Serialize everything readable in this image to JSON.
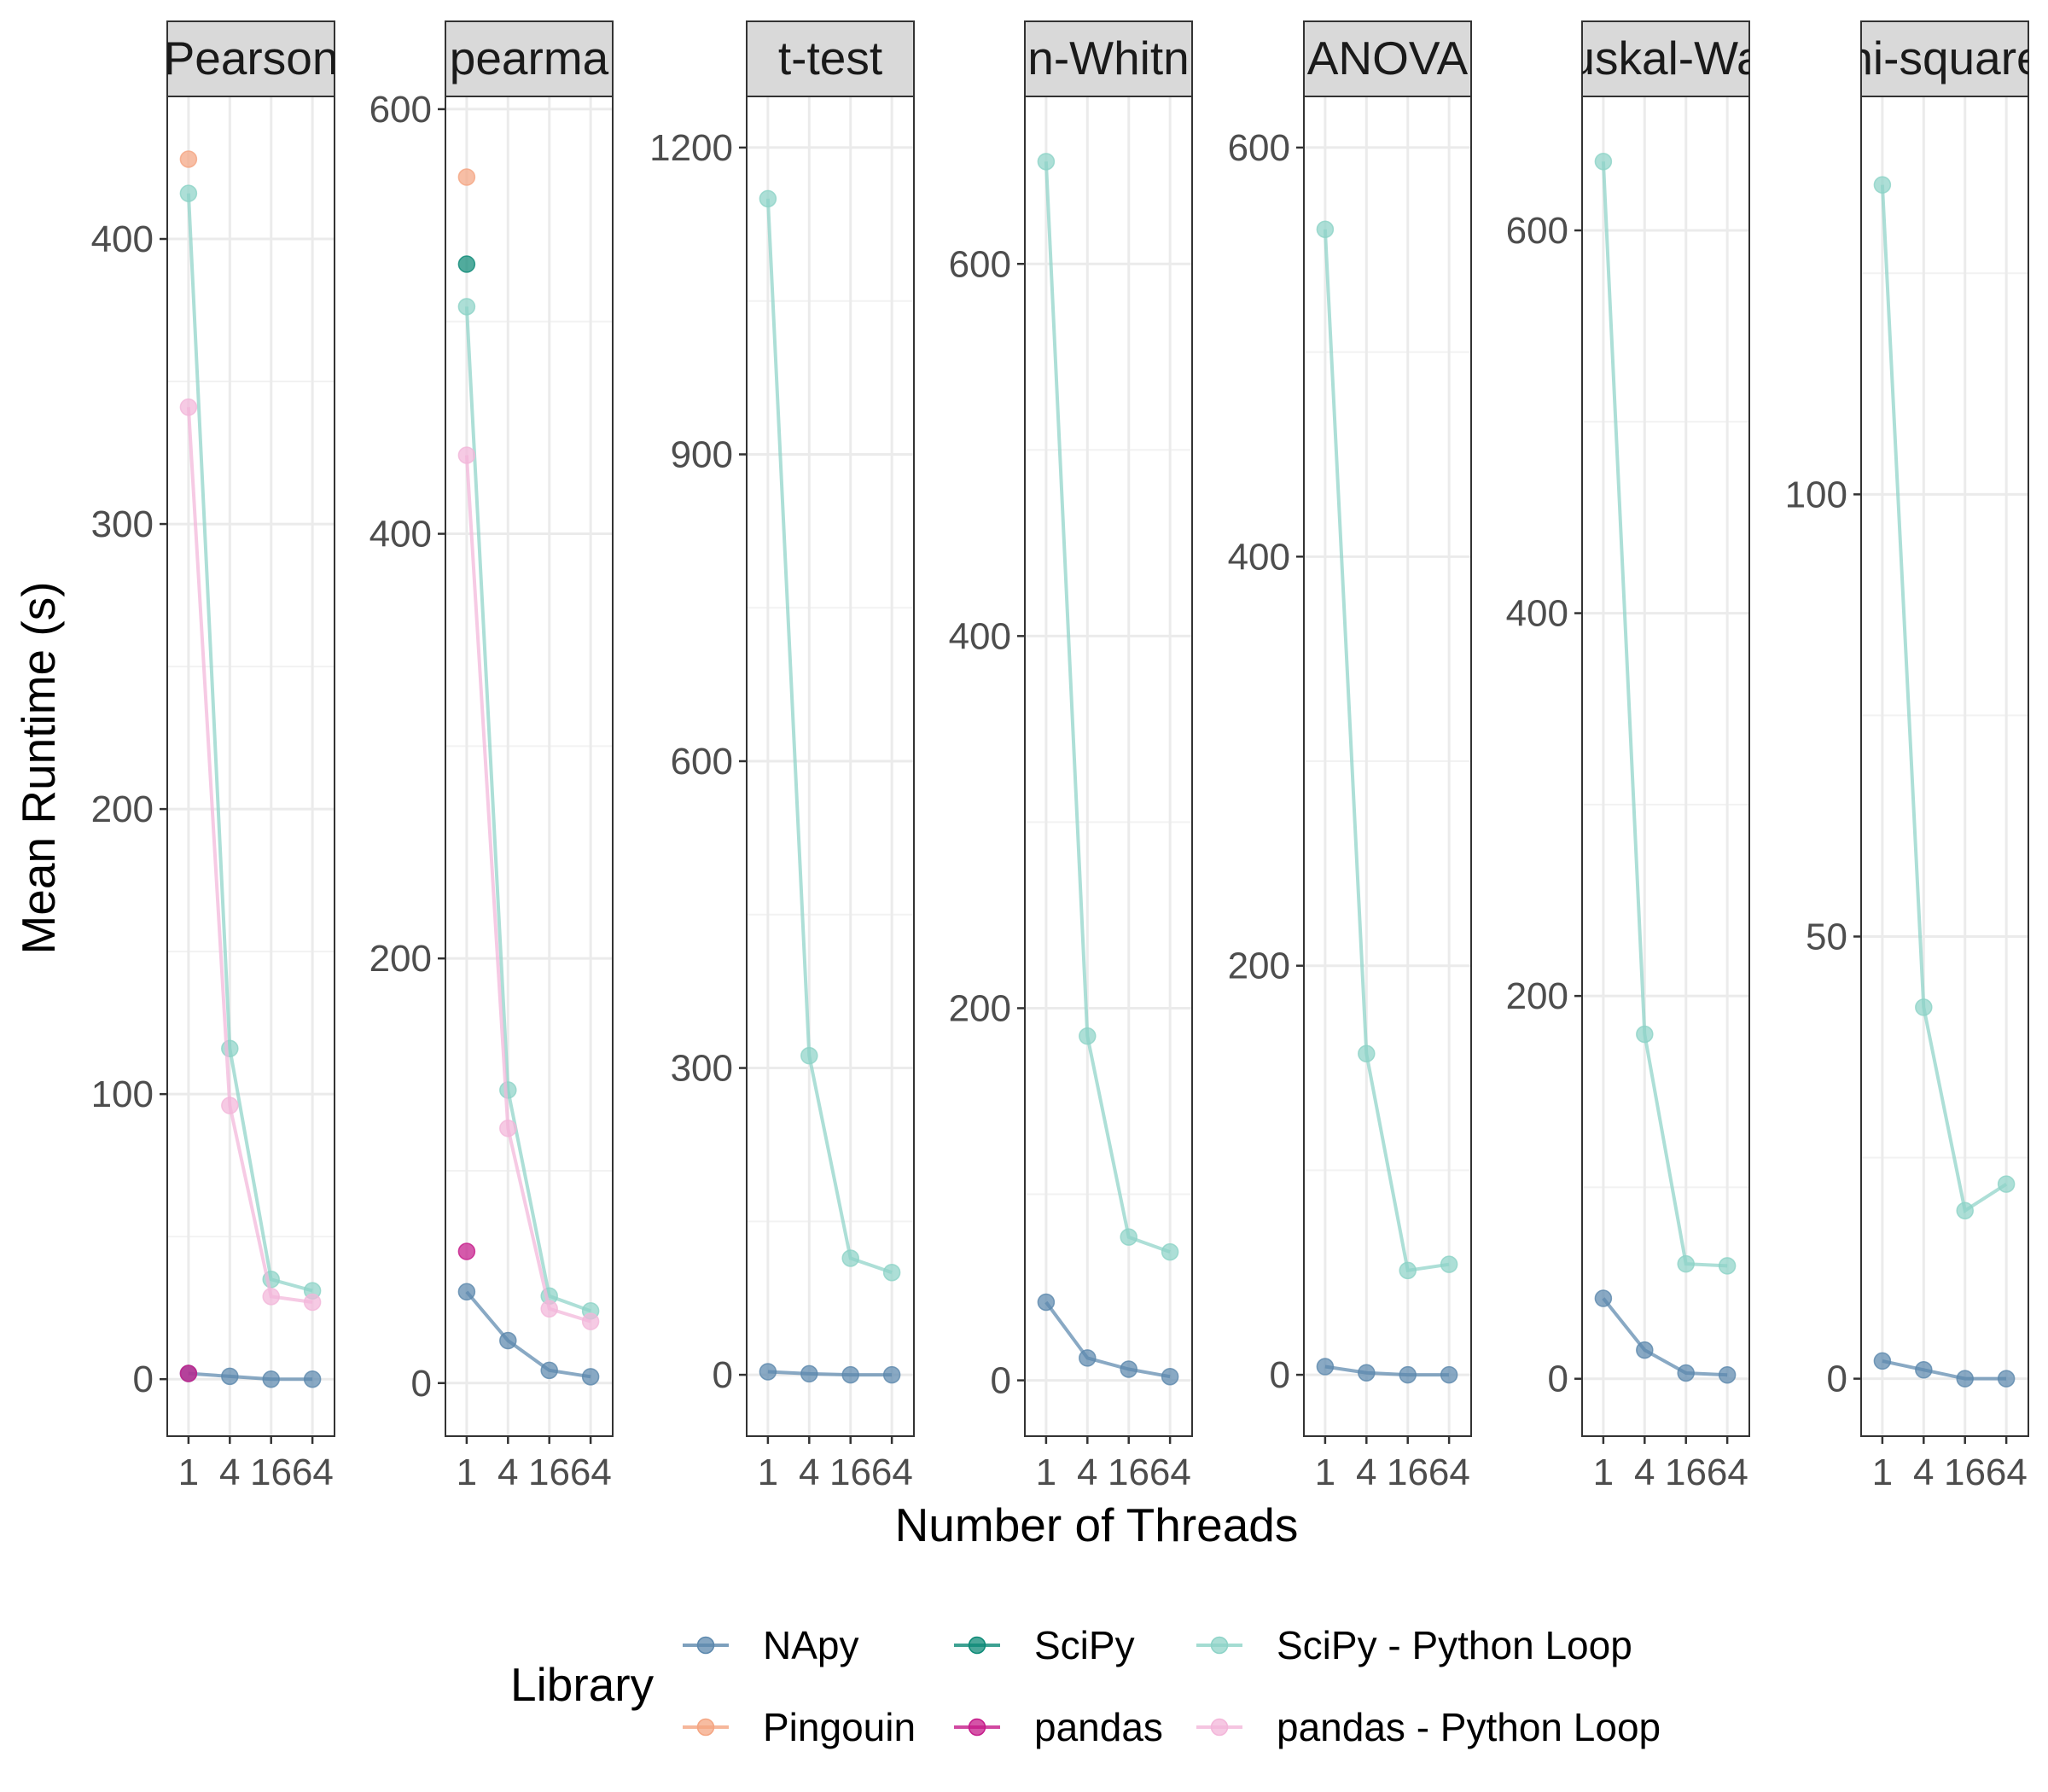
{
  "figure": {
    "xlabel": "Number of Threads",
    "ylabel": "Mean Runtime (s)"
  },
  "legend": {
    "title": "Library",
    "position": "bottom",
    "items": [
      {
        "label": "NApy",
        "color": "#5C88AD"
      },
      {
        "label": "SciPy",
        "color": "#0E8A77"
      },
      {
        "label": "SciPy - Python Loop",
        "color": "#8DD3C7"
      },
      {
        "label": "Pingouin",
        "color": "#F4A582"
      },
      {
        "label": "pandas",
        "color": "#C51B8A"
      },
      {
        "label": "pandas - Python Loop",
        "color": "#F3B6D9"
      }
    ]
  },
  "chart_data": {
    "type": "line",
    "grid": true,
    "x_ticks": [
      "1",
      "4",
      "16",
      "64"
    ],
    "x_tick_text": [
      "1",
      "4",
      "1664",
      ""
    ],
    "facets": [
      {
        "strip": "Pearson",
        "ylim": [
          -20,
          450
        ],
        "yticks": [
          0,
          100,
          200,
          300,
          400
        ],
        "series": [
          {
            "name": "NApy",
            "x": [
              "1",
              "4",
              "16",
              "64"
            ],
            "values": [
              2,
              1,
              0,
              0
            ]
          },
          {
            "name": "Pingouin",
            "x": [
              "1"
            ],
            "values": [
              428
            ]
          },
          {
            "name": "SciPy - Python Loop",
            "x": [
              "1",
              "4",
              "16",
              "64"
            ],
            "values": [
              416,
              116,
              35,
              31
            ]
          },
          {
            "name": "pandas",
            "x": [
              "1"
            ],
            "values": [
              2
            ]
          },
          {
            "name": "pandas - Python Loop",
            "x": [
              "1",
              "4",
              "16",
              "64"
            ],
            "values": [
              341,
              96,
              29,
              27
            ]
          }
        ]
      },
      {
        "strip": "pearma",
        "ylim": [
          -25,
          606
        ],
        "yticks": [
          0,
          200,
          400,
          600
        ],
        "series": [
          {
            "name": "NApy",
            "x": [
              "1",
              "4",
              "16",
              "64"
            ],
            "values": [
              43,
              20,
              6,
              3
            ]
          },
          {
            "name": "Pingouin",
            "x": [
              "1"
            ],
            "values": [
              568
            ]
          },
          {
            "name": "SciPy",
            "x": [
              "1"
            ],
            "values": [
              527
            ]
          },
          {
            "name": "SciPy - Python Loop",
            "x": [
              "1",
              "4",
              "16",
              "64"
            ],
            "values": [
              507,
              138,
              41,
              34
            ]
          },
          {
            "name": "pandas",
            "x": [
              "1"
            ],
            "values": [
              62
            ]
          },
          {
            "name": "pandas - Python Loop",
            "x": [
              "1",
              "4",
              "16",
              "64"
            ],
            "values": [
              437,
              120,
              35,
              29
            ]
          }
        ]
      },
      {
        "strip": "t-test",
        "ylim": [
          -60,
          1250
        ],
        "yticks": [
          0,
          300,
          600,
          900,
          1200
        ],
        "series": [
          {
            "name": "NApy",
            "x": [
              "1",
              "4",
              "16",
              "64"
            ],
            "values": [
              3,
              1,
              0,
              0
            ]
          },
          {
            "name": "SciPy - Python Loop",
            "x": [
              "1",
              "4",
              "16",
              "64"
            ],
            "values": [
              1150,
              312,
              114,
              100
            ]
          }
        ]
      },
      {
        "strip": "n-Whitn",
        "ylim": [
          -30,
          690
        ],
        "yticks": [
          0,
          200,
          400,
          600
        ],
        "series": [
          {
            "name": "NApy",
            "x": [
              "1",
              "4",
              "16",
              "64"
            ],
            "values": [
              42,
              12,
              6,
              2
            ]
          },
          {
            "name": "SciPy - Python Loop",
            "x": [
              "1",
              "4",
              "16",
              "64"
            ],
            "values": [
              655,
              185,
              77,
              69
            ]
          }
        ]
      },
      {
        "strip": "ANOVA",
        "ylim": [
          -30,
          625
        ],
        "yticks": [
          0,
          200,
          400,
          600
        ],
        "series": [
          {
            "name": "NApy",
            "x": [
              "1",
              "4",
              "16",
              "64"
            ],
            "values": [
              4,
              1,
              0,
              0
            ]
          },
          {
            "name": "SciPy - Python Loop",
            "x": [
              "1",
              "4",
              "16",
              "64"
            ],
            "values": [
              560,
              157,
              51,
              54
            ]
          }
        ]
      },
      {
        "strip": "uskal-Wa",
        "ylim": [
          -30,
          670
        ],
        "yticks": [
          0,
          200,
          400,
          600
        ],
        "series": [
          {
            "name": "NApy",
            "x": [
              "1",
              "4",
              "16",
              "64"
            ],
            "values": [
              42,
              15,
              3,
              2
            ]
          },
          {
            "name": "SciPy - Python Loop",
            "x": [
              "1",
              "4",
              "16",
              "64"
            ],
            "values": [
              636,
              180,
              60,
              59
            ]
          }
        ]
      },
      {
        "strip": "hi-square",
        "ylim": [
          -6.5,
          145
        ],
        "yticks": [
          0,
          50,
          100
        ],
        "series": [
          {
            "name": "NApy",
            "x": [
              "1",
              "4",
              "16",
              "64"
            ],
            "values": [
              2,
              1,
              0,
              0
            ]
          },
          {
            "name": "SciPy - Python Loop",
            "x": [
              "1",
              "4",
              "16",
              "64"
            ],
            "values": [
              135,
              42,
              19,
              22
            ]
          }
        ]
      }
    ]
  }
}
